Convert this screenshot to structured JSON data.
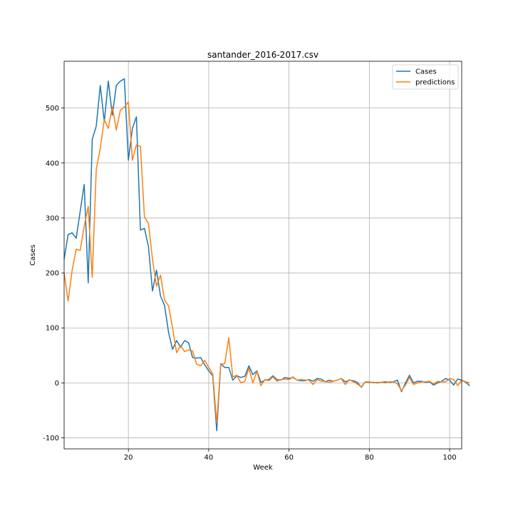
{
  "chart_data": {
    "type": "line",
    "title": "santander_2016-2017.csv",
    "xlabel": "Week",
    "ylabel": "Cases",
    "xlim": [
      4,
      103
    ],
    "ylim": [
      -120,
      585
    ],
    "xticks": [
      20,
      40,
      60,
      80,
      100
    ],
    "yticks": [
      -100,
      0,
      100,
      200,
      300,
      400,
      500
    ],
    "grid": true,
    "legend_position": "top-right",
    "x_start": 4,
    "series": [
      {
        "name": "Cases",
        "color": "#1f77b4",
        "values": [
          225,
          270,
          273,
          263,
          312,
          361,
          182,
          443,
          467,
          541,
          475,
          549,
          487,
          541,
          549,
          553,
          405,
          463,
          484,
          278,
          281,
          248,
          167,
          205,
          158,
          141,
          92,
          61,
          77,
          65,
          77,
          73,
          46,
          45,
          46,
          33,
          22,
          13,
          -87,
          35,
          28,
          28,
          5,
          13,
          10,
          12,
          31,
          15,
          22,
          1,
          5,
          6,
          13,
          6,
          5,
          10,
          8,
          10,
          5,
          4,
          4,
          6,
          3,
          8,
          7,
          2,
          5,
          3,
          5,
          8,
          2,
          5,
          4,
          1,
          -8,
          2,
          1,
          1,
          0,
          1,
          2,
          1,
          2,
          5,
          -16,
          0,
          14,
          0,
          3,
          3,
          1,
          2,
          -4,
          0,
          3,
          8,
          5,
          -4,
          7,
          5,
          1,
          -5
        ]
      },
      {
        "name": "predictions",
        "color": "#ff7f0e",
        "values": [
          200,
          149,
          205,
          243,
          241,
          285,
          321,
          192,
          388,
          427,
          479,
          463,
          502,
          460,
          496,
          502,
          511,
          405,
          433,
          430,
          302,
          290,
          225,
          176,
          196,
          151,
          140,
          100,
          55,
          68,
          57,
          60,
          58,
          34,
          31,
          41,
          28,
          17,
          -73,
          34,
          35,
          82,
          11,
          14,
          0,
          3,
          27,
          0,
          21,
          -5,
          6,
          4,
          11,
          3,
          6,
          7,
          6,
          11,
          5,
          6,
          5,
          5,
          -3,
          6,
          3,
          3,
          1,
          3,
          5,
          8,
          -3,
          6,
          2,
          -2,
          -7,
          2,
          2,
          0,
          1,
          1,
          0,
          2,
          2,
          -2,
          -14,
          -4,
          10,
          -3,
          0,
          2,
          2,
          3,
          -2,
          3,
          2,
          2,
          8,
          6,
          -5,
          5,
          2,
          0
        ]
      }
    ]
  }
}
